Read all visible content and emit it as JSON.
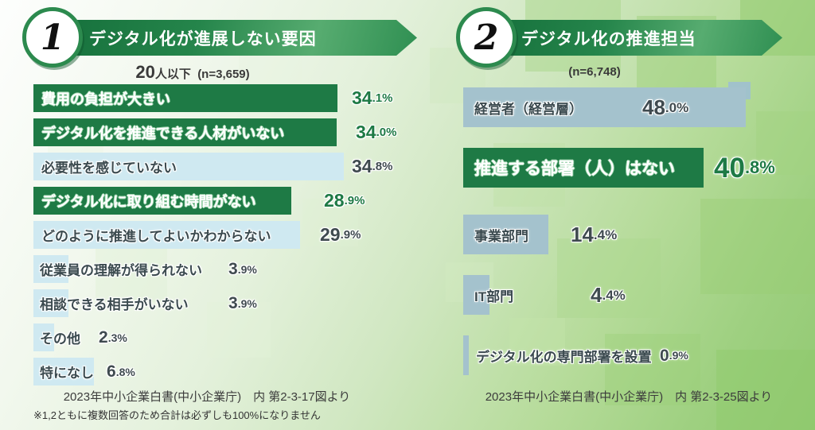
{
  "colors": {
    "accent_green": "#1e7a45",
    "light_blue": "#cfe9f1",
    "blue_gray": "#a4c2cd",
    "banner_green": "#25854b"
  },
  "note": "※1,2ともに複数回答のため合計は必ずしも100%になりません",
  "panels": [
    {
      "number": "1",
      "title": "デジタル化が進展しない要因",
      "subtitle_big": "20",
      "subtitle_mid": "人以下",
      "subtitle_n": "(n=3,659)",
      "source": "2023年中小企業白書(中小企業庁)　内 第2-3-17図より",
      "items": [
        {
          "label": "費用の負担が大きい",
          "value": 34.1,
          "int": "34",
          "frac": ".1%"
        },
        {
          "label": "デジタル化を推進できる人材がいない",
          "value": 34.0,
          "int": "34",
          "frac": ".0%"
        },
        {
          "label": "必要性を感じていない",
          "value": 34.8,
          "int": "34",
          "frac": ".8%"
        },
        {
          "label": "デジタル化に取り組む時間がない",
          "value": 28.9,
          "int": "28",
          "frac": ".9%"
        },
        {
          "label": "どのように推進してよいかわからない",
          "value": 29.9,
          "int": "29",
          "frac": ".9%"
        },
        {
          "label": "従業員の理解が得られない",
          "value": 3.9,
          "int": "3",
          "frac": ".9%"
        },
        {
          "label": "相談できる相手がいない",
          "value": 3.9,
          "int": "3",
          "frac": ".9%"
        },
        {
          "label": "その他",
          "value": 2.3,
          "int": "2",
          "frac": ".3%"
        },
        {
          "label": "特になし",
          "value": 6.8,
          "int": "6",
          "frac": ".8%"
        }
      ]
    },
    {
      "number": "2",
      "title": "デジタル化の推進担当",
      "subtitle_n": "(n=6,748)",
      "source": "2023年中小企業白書(中小企業庁)　内 第2-3-25図より",
      "items": [
        {
          "label": "経営者（経営層）",
          "value": 48.0,
          "int": "48",
          "frac": ".0%"
        },
        {
          "label": "推進する部署（人）はない",
          "value": 40.8,
          "int": "40",
          "frac": ".8%"
        },
        {
          "label": "事業部門",
          "value": 14.4,
          "int": "14",
          "frac": ".4%"
        },
        {
          "label": "IT部門",
          "value": 4.4,
          "int": "4",
          "frac": ".4%"
        },
        {
          "label": "デジタル化の専門部署を設置",
          "value": 0.9,
          "int": "0",
          "frac": ".9%"
        }
      ]
    }
  ],
  "chart_data": [
    {
      "type": "bar",
      "orientation": "horizontal",
      "title": "デジタル化が進展しない要因",
      "subtitle": "20人以下 (n=3,659)",
      "categories": [
        "費用の負担が大きい",
        "デジタル化を推進できる人材がいない",
        "必要性を感じていない",
        "デジタル化に取り組む時間がない",
        "どのように推進してよいかわからない",
        "従業員の理解が得られない",
        "相談できる相手がいない",
        "その他",
        "特になし"
      ],
      "values": [
        34.1,
        34.0,
        34.8,
        28.9,
        29.9,
        3.9,
        3.9,
        2.3,
        6.8
      ],
      "unit": "%",
      "source": "2023年中小企業白書(中小企業庁)　内 第2-3-17図より",
      "highlight_color_categories": [
        "費用の負担が大きい",
        "デジタル化を推進できる人材がいない",
        "デジタル化に取り組む時間がない"
      ]
    },
    {
      "type": "bar",
      "orientation": "horizontal",
      "title": "デジタル化の推進担当",
      "subtitle": "(n=6,748)",
      "categories": [
        "経営者（経営層）",
        "推進する部署（人）はない",
        "事業部門",
        "IT部門",
        "デジタル化の専門部署を設置"
      ],
      "values": [
        48.0,
        40.8,
        14.4,
        4.4,
        0.9
      ],
      "unit": "%",
      "source": "2023年中小企業白書(中小企業庁)　内 第2-3-25図より",
      "highlight_color_categories": [
        "推進する部署（人）はない"
      ]
    }
  ]
}
